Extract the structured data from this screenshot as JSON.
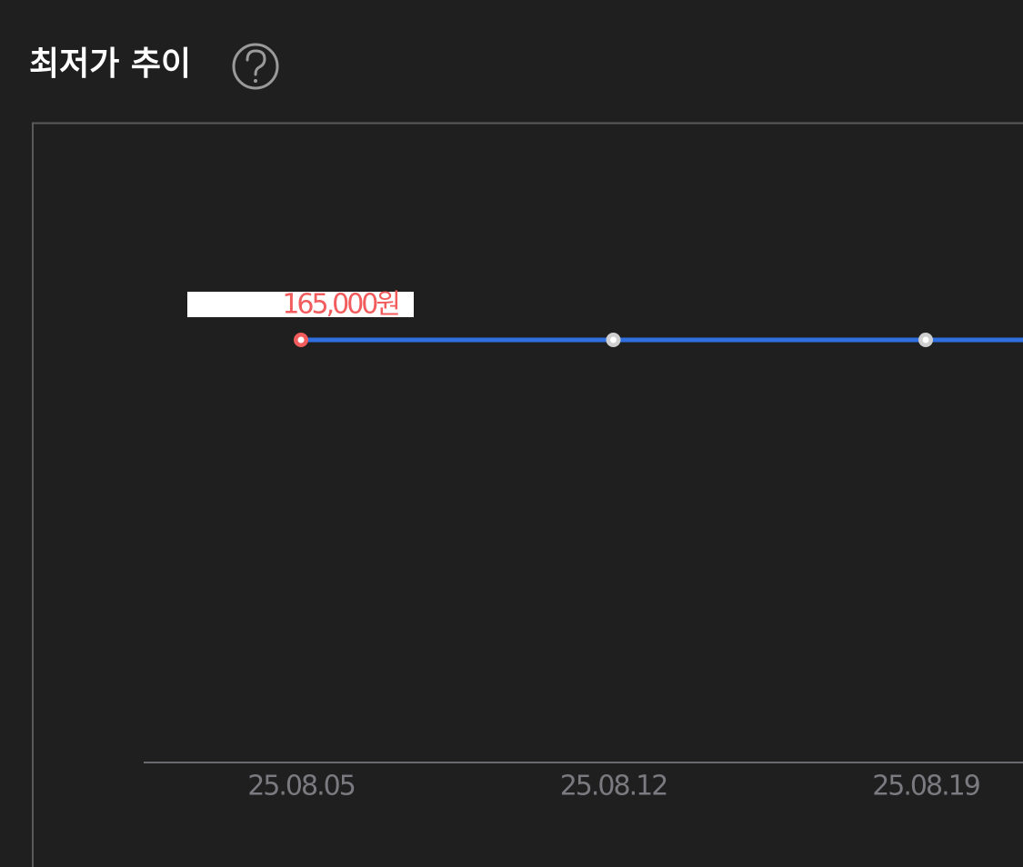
{
  "header": {
    "title": "최저가 추이"
  },
  "chart_data": {
    "type": "line",
    "categories": [
      "25.08.05",
      "25.08.12",
      "25.08.19"
    ],
    "series": [
      {
        "color": "#2f6fe0",
        "values": [
          165000,
          165000,
          165000
        ],
        "value_labels": [
          "165,000원",
          null,
          null
        ],
        "point_colors": [
          "#f25c5c",
          "#cfcfcf",
          "#cfcfcf"
        ]
      }
    ]
  }
}
